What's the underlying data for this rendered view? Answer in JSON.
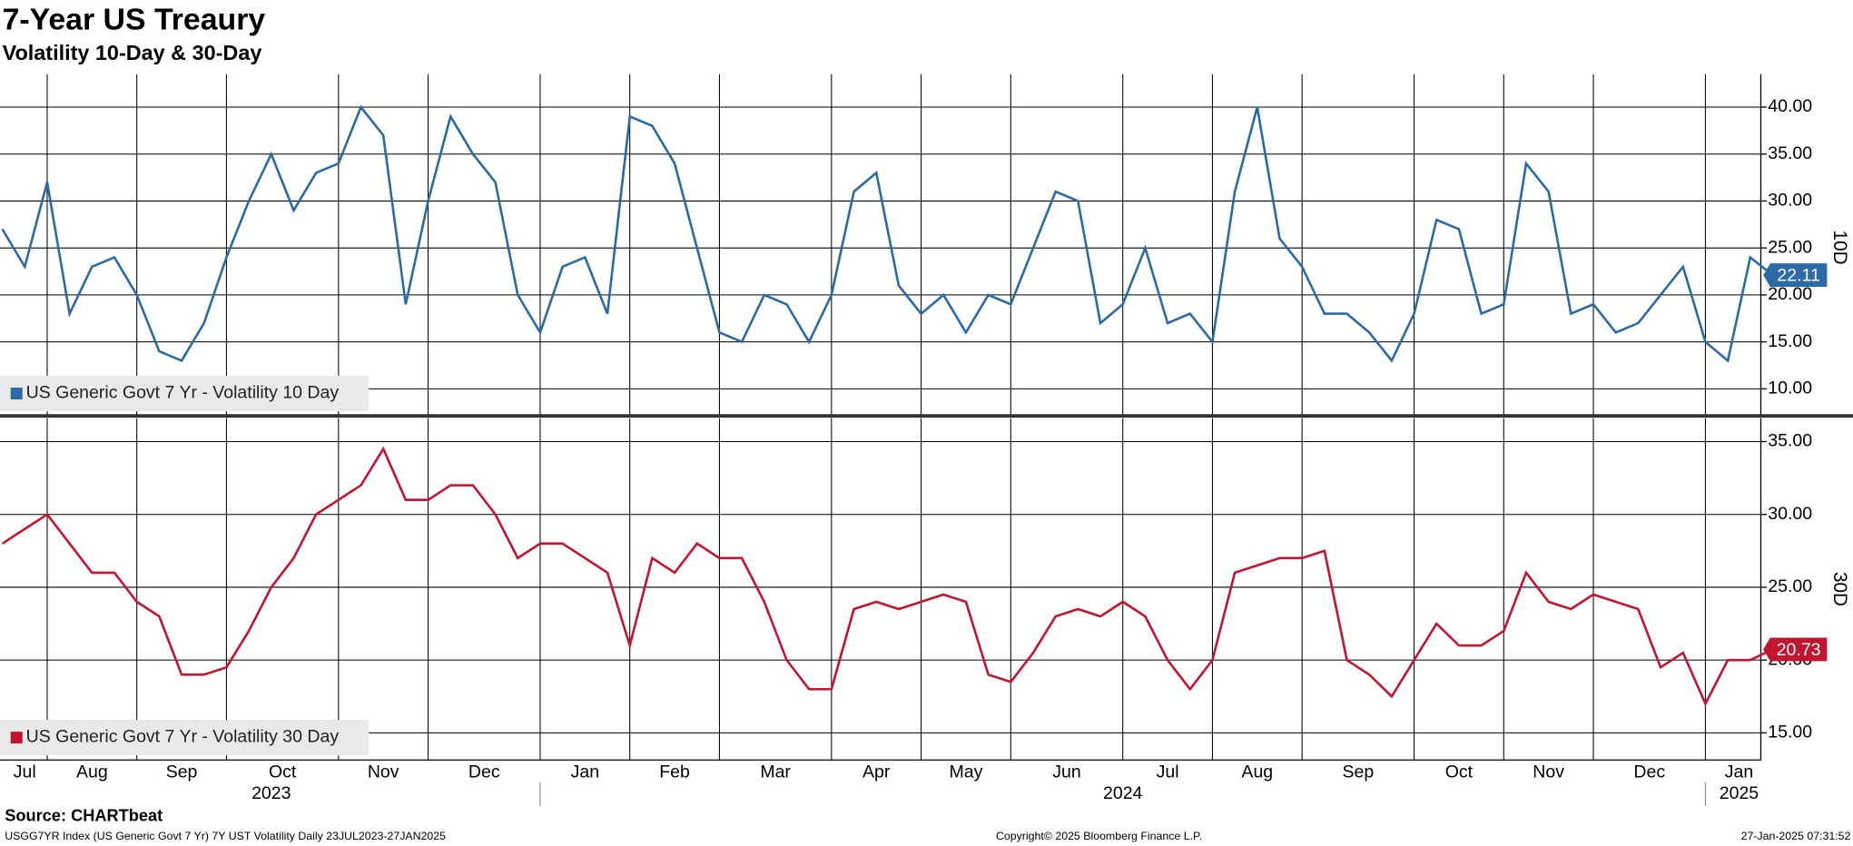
{
  "title": "7-Year US Treaury",
  "subtitle": "Volatility 10-Day & 30-Day",
  "source": "Source: CHARTbeat",
  "footer": {
    "description": "USGG7YR Index (US Generic Govt 7 Yr) 7Y UST Volatility  Daily 23JUL2023-27JAN2025",
    "copyright": "Copyright© 2025 Bloomberg Finance L.P.",
    "timestamp": "27-Jan-2025 07:31:52"
  },
  "chart_data": [
    {
      "type": "line",
      "y_label": "10D",
      "ylim": [
        7.24,
        43.5
      ],
      "yticks": [
        {
          "value": 10,
          "label": "10.00"
        },
        {
          "value": 15,
          "label": "15.00"
        },
        {
          "value": 20,
          "label": "20.00"
        },
        {
          "value": 25,
          "label": "25.00"
        },
        {
          "value": 30,
          "label": "30.00"
        },
        {
          "value": 35,
          "label": "35.00"
        },
        {
          "value": 40,
          "label": "40.00"
        }
      ],
      "grid": true,
      "series": [
        {
          "name": "US Generic Govt 7 Yr - Volatility 10 Day",
          "color": "#2b6aa6",
          "values": [
            27,
            23,
            32,
            18,
            23,
            24,
            20,
            14,
            13,
            17,
            24,
            30,
            35,
            29,
            33,
            34,
            40,
            37,
            19,
            30,
            39,
            35,
            32,
            20,
            16,
            23,
            24,
            18,
            39,
            38,
            34,
            25,
            16,
            15,
            20,
            19,
            15,
            20,
            31,
            33,
            21,
            18,
            20,
            16,
            20,
            19,
            25,
            31,
            30,
            17,
            19,
            25,
            17,
            18,
            15,
            31,
            40,
            26,
            23,
            18,
            18,
            16,
            13,
            18,
            28,
            27,
            18,
            19,
            34,
            31,
            18,
            19,
            16,
            17,
            20,
            23,
            15,
            13,
            24,
            22.11
          ]
        }
      ]
    },
    {
      "type": "line",
      "y_label": "30D",
      "ylim": [
        13.14,
        36.6
      ],
      "yticks": [
        {
          "value": 15,
          "label": "15.00"
        },
        {
          "value": 20,
          "label": "20.00"
        },
        {
          "value": 25,
          "label": "25.00"
        },
        {
          "value": 30,
          "label": "30.00"
        },
        {
          "value": 35,
          "label": "35.00"
        }
      ],
      "grid": true,
      "categories": [
        "Jul",
        null,
        "Aug",
        null,
        null,
        null,
        "Sep",
        null,
        null,
        null,
        "Oct",
        null,
        null,
        null,
        null,
        "Nov",
        null,
        null,
        null,
        "Dec",
        null,
        null,
        null,
        null,
        "Jan",
        null,
        null,
        null,
        "Feb",
        null,
        null,
        null,
        "Mar",
        null,
        null,
        null,
        null,
        "Apr",
        null,
        null,
        null,
        "May",
        null,
        null,
        null,
        "Jun",
        null,
        null,
        null,
        null,
        "Jul",
        null,
        null,
        null,
        "Aug",
        null,
        null,
        null,
        "Sep",
        null,
        null,
        null,
        null,
        "Oct",
        null,
        null,
        null,
        "Nov",
        null,
        null,
        null,
        "Dec",
        null,
        null,
        null,
        null,
        "Jan",
        null,
        null,
        null
      ],
      "year_categories": [
        "2023",
        null,
        null,
        null,
        null,
        null,
        null,
        null,
        null,
        null,
        null,
        null,
        null,
        null,
        null,
        null,
        null,
        null,
        null,
        null,
        null,
        null,
        null,
        null,
        "2024",
        null,
        null,
        null,
        null,
        null,
        null,
        null,
        null,
        null,
        null,
        null,
        null,
        null,
        null,
        null,
        null,
        null,
        null,
        null,
        null,
        null,
        null,
        null,
        null,
        null,
        null,
        null,
        null,
        null,
        null,
        null,
        null,
        null,
        null,
        null,
        null,
        null,
        null,
        null,
        null,
        null,
        null,
        null,
        null,
        null,
        null,
        null,
        null,
        null,
        null,
        null,
        "2025",
        null,
        null,
        null
      ],
      "series": [
        {
          "name": "US Generic Govt 7 Yr - Volatility 30 Day",
          "color": "#c0152f",
          "values": [
            28,
            29,
            30,
            28,
            26,
            26,
            24,
            23,
            19,
            19,
            19.5,
            22,
            25,
            27,
            30,
            31,
            32,
            34.5,
            31,
            31,
            32,
            32,
            30,
            27,
            28,
            28,
            27,
            26,
            21,
            27,
            26,
            28,
            27,
            27,
            24,
            20,
            18,
            18,
            23.5,
            24,
            23.5,
            24,
            24.5,
            24,
            19,
            18.5,
            20.5,
            23,
            23.5,
            23,
            24,
            23,
            20,
            18,
            20,
            26,
            26.5,
            27,
            27,
            27.5,
            20,
            19,
            17.5,
            20,
            22.5,
            21,
            21,
            22,
            26,
            24,
            23.5,
            24.5,
            24,
            23.5,
            19.5,
            20.5,
            17,
            20,
            20,
            20.73
          ]
        }
      ]
    }
  ]
}
